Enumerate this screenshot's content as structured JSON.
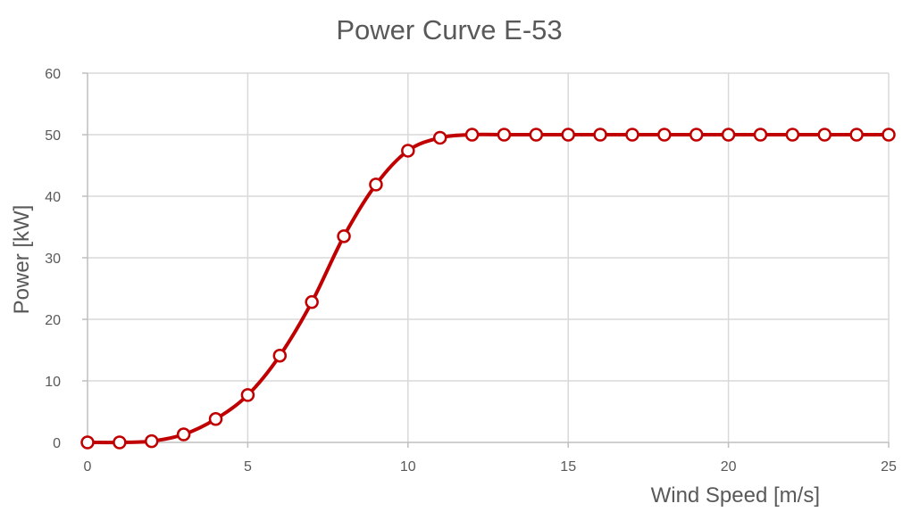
{
  "chart_data": {
    "type": "line",
    "title": "Power Curve E-53",
    "xlabel": "Wind Speed  [m/s]",
    "ylabel": "Power  [kW]",
    "xlim": [
      0,
      25
    ],
    "ylim": [
      0,
      60
    ],
    "xticks": [
      0,
      5,
      10,
      15,
      20,
      25
    ],
    "yticks": [
      0,
      10,
      20,
      30,
      40,
      50,
      60
    ],
    "grid": true,
    "legend": "none",
    "series": [
      {
        "color": "#c00000",
        "marker": "open-circle",
        "smooth": true,
        "x": [
          0,
          1,
          2,
          3,
          4,
          5,
          6,
          7,
          8,
          9,
          10,
          11,
          12,
          13,
          14,
          15,
          16,
          17,
          18,
          19,
          20,
          21,
          22,
          23,
          24,
          25
        ],
        "y": [
          0,
          0,
          0.2,
          1.3,
          3.8,
          7.7,
          14.1,
          22.8,
          33.5,
          41.9,
          47.4,
          49.5,
          50,
          50,
          50,
          50,
          50,
          50,
          50,
          50,
          50,
          50,
          50,
          50,
          50,
          50
        ]
      }
    ]
  }
}
